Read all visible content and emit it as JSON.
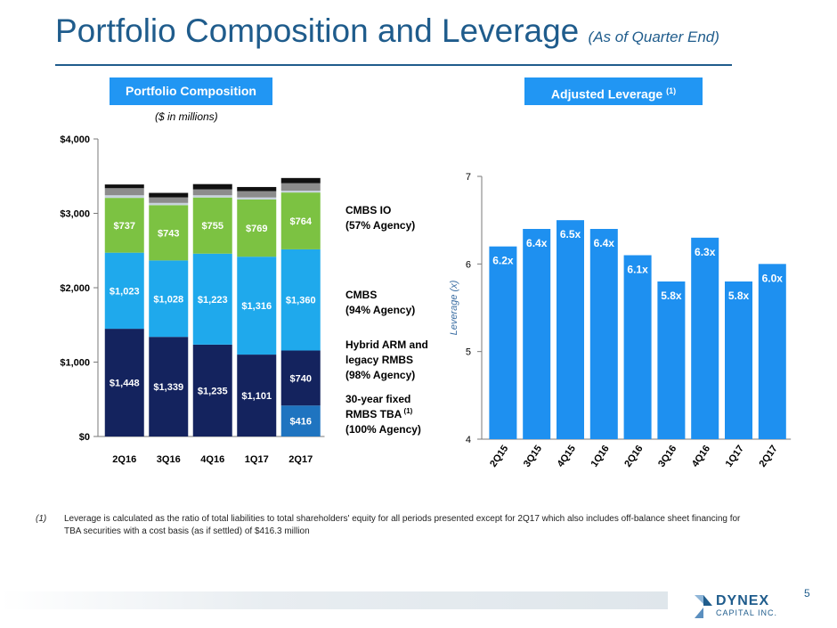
{
  "page": {
    "title": "Portfolio Composition and Leverage",
    "title_note": "(As of Quarter End)",
    "left_header": "Portfolio Composition",
    "right_header": "Adjusted Leverage",
    "right_header_note": "(1)",
    "units": "($ in millions)",
    "footnote_mark": "(1)",
    "footnote_text": "Leverage is calculated as the ratio of total liabilities to total shareholders' equity for all periods presented except for 2Q17 which also includes off-balance sheet financing for TBA securities with a cost basis (as if settled) of $416.3 million",
    "page_number": "5",
    "logo_name": "DYNEX",
    "logo_sub": "CAPITAL INC."
  },
  "colors": {
    "title": "#1f5c8c",
    "header_bg": "#2196f3",
    "tba": "#1f74c0",
    "hybrid": "#14235e",
    "cmbs": "#1fa9ec",
    "cmbs_io": "#7cc242",
    "other_light": "#c8d3dd",
    "other_mid": "#8c8c8c",
    "other_dark": "#111111",
    "leverage_bar": "#1e90f0"
  },
  "chart_data": [
    {
      "type": "bar",
      "stacked": true,
      "title": "Portfolio Composition",
      "units": "($ in millions)",
      "categories": [
        "2Q16",
        "3Q16",
        "4Q16",
        "1Q17",
        "2Q17"
      ],
      "ylim": [
        0,
        4000
      ],
      "yticks": [
        0,
        1000,
        2000,
        3000,
        4000
      ],
      "ytick_labels": [
        "$0",
        "$1,000",
        "$2,000",
        "$3,000",
        "$4,000"
      ],
      "series": [
        {
          "name": "30-year fixed RMBS TBA",
          "values": [
            0,
            0,
            0,
            0,
            416
          ],
          "labels": [
            "",
            "",
            "",
            "",
            "$416"
          ],
          "color_key": "tba"
        },
        {
          "name": "Hybrid ARM and legacy RMBS",
          "values": [
            1448,
            1339,
            1235,
            1101,
            740
          ],
          "labels": [
            "$1,448",
            "$1,339",
            "$1,235",
            "$1,101",
            "$740"
          ],
          "color_key": "hybrid"
        },
        {
          "name": "CMBS",
          "values": [
            1023,
            1028,
            1223,
            1316,
            1360
          ],
          "labels": [
            "$1,023",
            "$1,028",
            "$1,223",
            "$1,316",
            "$1,360"
          ],
          "color_key": "cmbs"
        },
        {
          "name": "CMBS IO",
          "values": [
            737,
            743,
            755,
            769,
            764
          ],
          "labels": [
            "$737",
            "$743",
            "$755",
            "$769",
            "$764"
          ],
          "color_key": "cmbs_io"
        },
        {
          "name": "Other (light)",
          "values": [
            35,
            30,
            30,
            28,
            25
          ],
          "labels": [
            "",
            "",
            "",
            "",
            ""
          ],
          "color_key": "other_light"
        },
        {
          "name": "Other (mid)",
          "values": [
            95,
            75,
            80,
            85,
            100
          ],
          "labels": [
            "",
            "",
            "",
            "",
            ""
          ],
          "color_key": "other_mid"
        },
        {
          "name": "Other (dark)",
          "values": [
            50,
            60,
            70,
            55,
            70
          ],
          "labels": [
            "",
            "",
            "",
            "",
            ""
          ],
          "color_key": "other_dark"
        }
      ],
      "legend": [
        {
          "lines": [
            "CMBS IO",
            "(57% Agency)"
          ],
          "sup": "",
          "anchor_series": 3
        },
        {
          "lines": [
            "CMBS",
            "(94% Agency)"
          ],
          "sup": "",
          "anchor_series": 2
        },
        {
          "lines": [
            "Hybrid ARM and",
            "legacy RMBS",
            "(98% Agency)"
          ],
          "sup": "",
          "anchor_series": 1
        },
        {
          "lines": [
            "30-year fixed",
            "RMBS TBA",
            "(100% Agency)"
          ],
          "sup": "(1)",
          "anchor_series": 0
        }
      ]
    },
    {
      "type": "bar",
      "title": "Adjusted Leverage",
      "ylabel": "Leverage (x)",
      "categories": [
        "2Q15",
        "3Q15",
        "4Q15",
        "1Q16",
        "2Q16",
        "3Q16",
        "4Q16",
        "1Q17",
        "2Q17"
      ],
      "values": [
        6.2,
        6.4,
        6.5,
        6.4,
        6.1,
        5.8,
        6.3,
        5.8,
        6.0
      ],
      "labels": [
        "6.2x",
        "6.4x",
        "6.5x",
        "6.4x",
        "6.1x",
        "5.8x",
        "6.3x",
        "5.8x",
        "6.0x"
      ],
      "ylim": [
        4,
        7
      ],
      "yticks": [
        4,
        5,
        6,
        7
      ],
      "ytick_labels": [
        "4",
        "5",
        "6",
        "7"
      ]
    }
  ]
}
